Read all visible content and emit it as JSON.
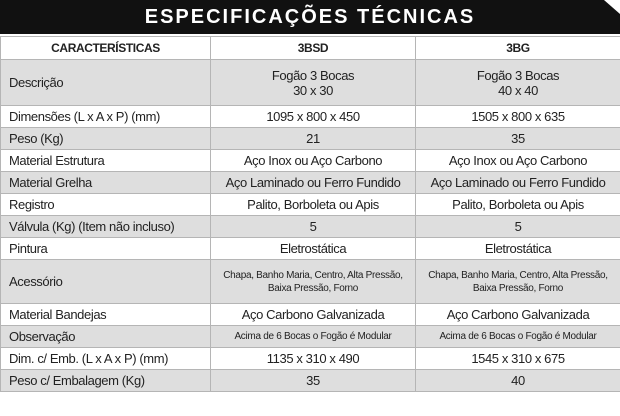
{
  "title": "ESPECIFICAÇÕES TÉCNICAS",
  "table": {
    "headers": [
      "CARACTERÍSTICAS",
      "3BSD",
      "3BG"
    ],
    "rows": [
      [
        "Descrição",
        "Fogão 3 Bocas\n30 x 30",
        "Fogão 3 Bocas\n40 x 40"
      ],
      [
        "Dimensões (L x A x P) (mm)",
        "1095 x 800 x 450",
        "1505 x 800 x 635"
      ],
      [
        "Peso (Kg)",
        "21",
        "35"
      ],
      [
        "Material Estrutura",
        "Aço Inox ou Aço Carbono",
        "Aço Inox ou Aço Carbono"
      ],
      [
        "Material Grelha",
        "Aço Laminado ou Ferro Fundido",
        "Aço Laminado ou Ferro Fundido"
      ],
      [
        "Registro",
        "Palito, Borboleta ou Apis",
        "Palito, Borboleta ou Apis"
      ],
      [
        "Válvula (Kg) (Item não incluso)",
        "5",
        "5"
      ],
      [
        "Pintura",
        "Eletrostática",
        "Eletrostática"
      ],
      [
        "Acessório",
        "Chapa, Banho Maria, Centro, Alta Pressão, Baixa Pressão, Forno",
        "Chapa, Banho Maria, Centro, Alta Pressão, Baixa Pressão, Forno"
      ],
      [
        "Material Bandejas",
        "Aço Carbono Galvanizada",
        "Aço Carbono Galvanizada"
      ],
      [
        "Observação",
        "Acima de 6 Bocas o Fogão é Modular",
        "Acima de 6 Bocas o Fogão é Modular"
      ],
      [
        "Dim. c/ Emb. (L x A x P) (mm)",
        "1135 x 310 x 490",
        "1545 x 310 x 675"
      ],
      [
        "Peso c/ Embalagem (Kg)",
        "35",
        "40"
      ]
    ]
  }
}
